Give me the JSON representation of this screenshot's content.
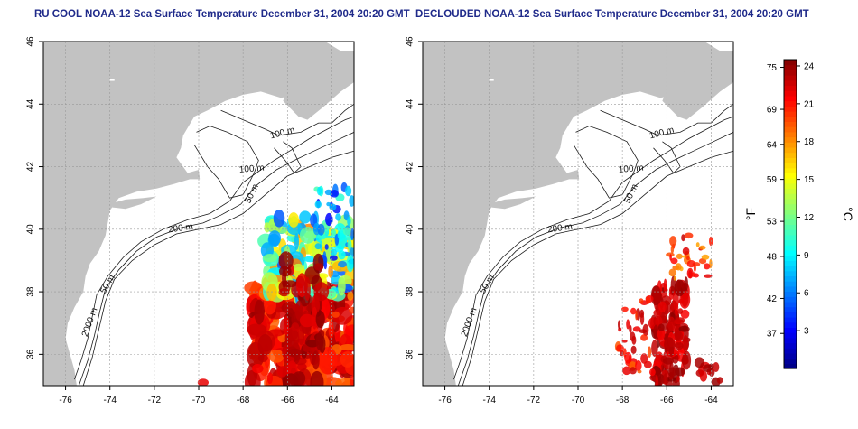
{
  "left_panel": {
    "title": "RU COOL NOAA-12 Sea Surface Temperature December 31, 2004 20:20 GMT"
  },
  "right_panel": {
    "title": "DECLOUDED NOAA-12 Sea Surface Temperature December 31, 2004 20:20 GMT"
  },
  "colors": {
    "land": "#c2c2c2",
    "contour": "#1a1a1a",
    "grid": "#999999",
    "title": "#1f2a8a"
  },
  "chart_data": [
    {
      "type": "heatmap",
      "title": "RU COOL NOAA-12 Sea Surface Temperature December 31, 2004 20:20 GMT",
      "xlim": [
        -77,
        -63
      ],
      "ylim": [
        35,
        46
      ],
      "x_ticks": [
        -76,
        -74,
        -72,
        -70,
        -68,
        -66,
        -64
      ],
      "y_ticks": [
        36,
        38,
        40,
        42,
        44,
        46
      ],
      "grid": true,
      "contour_labels": [
        "100 m",
        "100 m",
        "50 m",
        "200 m",
        "50 m",
        "2000 m"
      ]
    },
    {
      "type": "heatmap",
      "title": "DECLOUDED NOAA-12 Sea Surface Temperature December 31, 2004 20:20 GMT",
      "xlim": [
        -77,
        -63
      ],
      "ylim": [
        35,
        46
      ],
      "x_ticks": [
        -76,
        -74,
        -72,
        -70,
        -68,
        -66,
        -64
      ],
      "y_ticks": [
        36,
        38,
        40,
        42,
        44,
        46
      ],
      "grid": true,
      "contour_labels": [
        "100 m",
        "100 m",
        "50 m",
        "200 m",
        "50 m",
        "2000 m"
      ]
    }
  ],
  "colorbar": {
    "celsius_label": "°C",
    "fahrenheit_label": "°F",
    "celsius_ticks": [
      3,
      6,
      9,
      12,
      15,
      18,
      21,
      24
    ],
    "fahrenheit_ticks": [
      37,
      42,
      48,
      53,
      59,
      64,
      69,
      75
    ],
    "range_c": [
      0,
      24.5
    ]
  }
}
